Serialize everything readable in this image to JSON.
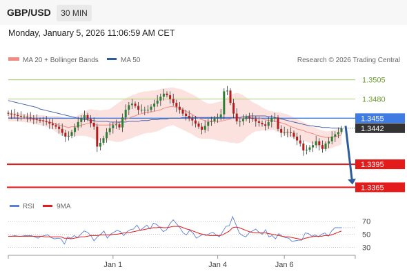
{
  "header": {
    "pair": "GBP/USD",
    "timeframe": "30 MIN"
  },
  "timestamp": "Monday, January 5, 2026 11:06:59 AM CET",
  "chart_data": [
    {
      "type": "candlestick",
      "legend": [
        {
          "label": "MA 20 + Bollinger Bands",
          "color": "#f28b82"
        },
        {
          "label": "MA 50",
          "color": "#2d5a9b"
        }
      ],
      "credit": "Research © 2026 Trading Central",
      "ylim": [
        1.336,
        1.352
      ],
      "levels": [
        {
          "label": "1.3505",
          "value": 1.3505,
          "color": "#8bc34a",
          "style": "thin"
        },
        {
          "label": "1.3480",
          "value": 1.348,
          "color": "#8bc34a",
          "style": "thin"
        },
        {
          "label": "1.3455",
          "value": 1.3455,
          "color": "#3f7be3",
          "style": "box"
        },
        {
          "label": "1.3442",
          "value": 1.3442,
          "color": "#333333",
          "style": "current"
        },
        {
          "label": "1.3395",
          "value": 1.3395,
          "color": "#e31b1b",
          "style": "thick"
        },
        {
          "label": "1.3365",
          "value": 1.3365,
          "color": "#e31b1b",
          "style": "thick"
        }
      ],
      "close": [
        1.3461,
        1.346,
        1.3459,
        1.3458,
        1.3457,
        1.3457,
        1.3456,
        1.3455,
        1.3454,
        1.3453,
        1.3452,
        1.3451,
        1.345,
        1.3448,
        1.3446,
        1.3444,
        1.3441,
        1.3436,
        1.3431,
        1.3432,
        1.3437,
        1.3443,
        1.345,
        1.3455,
        1.3459,
        1.3454,
        1.3449,
        1.3444,
        1.3418,
        1.3423,
        1.3429,
        1.3437,
        1.3442,
        1.3446,
        1.3447,
        1.3443,
        1.3456,
        1.3466,
        1.3472,
        1.3474,
        1.3471,
        1.3466,
        1.3466,
        1.3466,
        1.3466,
        1.347,
        1.3474,
        1.3478,
        1.3483,
        1.3487,
        1.3485,
        1.348,
        1.3475,
        1.347,
        1.3466,
        1.3461,
        1.3458,
        1.3455,
        1.3452,
        1.3448,
        1.3444,
        1.344,
        1.3445,
        1.345,
        1.3451,
        1.3455,
        1.3456,
        1.346,
        1.349,
        1.3491,
        1.3475,
        1.3461,
        1.3451,
        1.3451,
        1.3454,
        1.3457,
        1.3455,
        1.3454,
        1.3451,
        1.3449,
        1.3447,
        1.3445,
        1.345,
        1.3455,
        1.3456,
        1.3441,
        1.3436,
        1.3437,
        1.3437,
        1.3436,
        1.3431,
        1.3426,
        1.3422,
        1.3413,
        1.3414,
        1.3417,
        1.342,
        1.3425,
        1.342,
        1.3415,
        1.3422,
        1.3425,
        1.3431,
        1.3434,
        1.3437,
        1.3442
      ],
      "ma20": [
        1.3456,
        1.3456,
        1.3456,
        1.3456,
        1.3455,
        1.3455,
        1.3454,
        1.3454,
        1.3453,
        1.3453,
        1.3452,
        1.3452,
        1.3451,
        1.345,
        1.3449,
        1.3447,
        1.3446,
        1.3445,
        1.3444,
        1.3443,
        1.3444,
        1.3444,
        1.3445,
        1.3446,
        1.3447,
        1.3448,
        1.3448,
        1.3447,
        1.3446,
        1.3446,
        1.3446,
        1.3446,
        1.3446,
        1.3447,
        1.3448,
        1.345,
        1.3452,
        1.3454,
        1.3455,
        1.3457,
        1.3458,
        1.346,
        1.3461,
        1.3462,
        1.3463,
        1.3463,
        1.3464,
        1.3465,
        1.3466,
        1.3468,
        1.3469,
        1.347,
        1.347,
        1.3469,
        1.3468,
        1.3466,
        1.3464,
        1.3462,
        1.346,
        1.3457,
        1.3455,
        1.3453,
        1.3452,
        1.3451,
        1.3451,
        1.3451,
        1.3451,
        1.3451,
        1.3452,
        1.3453,
        1.3454,
        1.3455,
        1.3455,
        1.3455,
        1.3455,
        1.3456,
        1.3456,
        1.3456,
        1.3456,
        1.3455,
        1.3454,
        1.3453,
        1.3452,
        1.3452,
        1.3451,
        1.345,
        1.3449,
        1.3448,
        1.3446,
        1.3444,
        1.3443,
        1.3441,
        1.344,
        1.3439,
        1.3437,
        1.3436,
        1.3435,
        1.3433,
        1.3432,
        1.3431,
        1.343,
        1.343,
        1.343,
        1.3431,
        1.3432,
        1.3433
      ],
      "bb_upper": [
        1.3462,
        1.3462,
        1.3462,
        1.3462,
        1.3461,
        1.3461,
        1.346,
        1.346,
        1.3459,
        1.3459,
        1.3459,
        1.3459,
        1.3458,
        1.3458,
        1.3458,
        1.3458,
        1.3458,
        1.3457,
        1.3456,
        1.3455,
        1.3455,
        1.3457,
        1.3459,
        1.3461,
        1.3463,
        1.3466,
        1.3467,
        1.3466,
        1.3466,
        1.3465,
        1.3466,
        1.3466,
        1.3467,
        1.347,
        1.3473,
        1.3476,
        1.3479,
        1.3481,
        1.3483,
        1.3485,
        1.3486,
        1.3488,
        1.3489,
        1.349,
        1.349,
        1.3491,
        1.3491,
        1.3492,
        1.3493,
        1.3494,
        1.3494,
        1.3495,
        1.3495,
        1.3494,
        1.3493,
        1.3492,
        1.349,
        1.3488,
        1.3486,
        1.3484,
        1.3481,
        1.3478,
        1.3476,
        1.3474,
        1.3474,
        1.3475,
        1.3476,
        1.3477,
        1.3479,
        1.3482,
        1.3485,
        1.3487,
        1.3488,
        1.3487,
        1.3485,
        1.3482,
        1.3479,
        1.3476,
        1.3474,
        1.3472,
        1.3469,
        1.3467,
        1.3465,
        1.3464,
        1.3463,
        1.3463,
        1.3462,
        1.3461,
        1.346,
        1.3458,
        1.3456,
        1.3454,
        1.3452,
        1.345,
        1.3448,
        1.3446,
        1.3444,
        1.3442,
        1.344,
        1.3439,
        1.3438,
        1.3438,
        1.3439,
        1.344,
        1.3441,
        1.3442
      ],
      "bb_lower": [
        1.3451,
        1.3451,
        1.3451,
        1.3451,
        1.345,
        1.345,
        1.3449,
        1.3449,
        1.3448,
        1.3447,
        1.3446,
        1.3445,
        1.3444,
        1.3442,
        1.344,
        1.3437,
        1.3434,
        1.3433,
        1.3432,
        1.3431,
        1.3432,
        1.3432,
        1.3432,
        1.3432,
        1.3432,
        1.3431,
        1.343,
        1.3428,
        1.3426,
        1.3426,
        1.3426,
        1.3426,
        1.3426,
        1.3425,
        1.3424,
        1.3424,
        1.3425,
        1.3427,
        1.3428,
        1.3429,
        1.3431,
        1.3432,
        1.3434,
        1.3435,
        1.3436,
        1.3436,
        1.3437,
        1.3438,
        1.344,
        1.3442,
        1.3444,
        1.3445,
        1.3446,
        1.3444,
        1.3442,
        1.344,
        1.3438,
        1.3436,
        1.3434,
        1.3431,
        1.3429,
        1.3428,
        1.3428,
        1.3428,
        1.3428,
        1.3427,
        1.3426,
        1.3425,
        1.3425,
        1.3424,
        1.3423,
        1.3423,
        1.3422,
        1.3423,
        1.3425,
        1.343,
        1.3433,
        1.3436,
        1.3438,
        1.3438,
        1.3439,
        1.3439,
        1.3439,
        1.344,
        1.3439,
        1.3437,
        1.3436,
        1.3434,
        1.3432,
        1.343,
        1.3429,
        1.3427,
        1.3426,
        1.3426,
        1.3424,
        1.3423,
        1.3421,
        1.3419,
        1.3418,
        1.3416,
        1.3414,
        1.3415,
        1.3416,
        1.3418,
        1.3419,
        1.3421
      ],
      "ma50": [
        1.3478,
        1.3477,
        1.3476,
        1.3475,
        1.3474,
        1.3473,
        1.3472,
        1.3471,
        1.347,
        1.3469,
        1.3467,
        1.3466,
        1.3465,
        1.3464,
        1.3463,
        1.3462,
        1.3461,
        1.346,
        1.3459,
        1.3458,
        1.3457,
        1.3456,
        1.3455,
        1.3454,
        1.3453,
        1.3453,
        1.3452,
        1.3452,
        1.3451,
        1.3451,
        1.3451,
        1.3451,
        1.345,
        1.345,
        1.345,
        1.345,
        1.345,
        1.345,
        1.3451,
        1.3451,
        1.3451,
        1.3451,
        1.3452,
        1.3452,
        1.3452,
        1.3453,
        1.3453,
        1.3453,
        1.3454,
        1.3454,
        1.3454,
        1.3455,
        1.3455,
        1.3455,
        1.3455,
        1.3456,
        1.3456,
        1.3456,
        1.3456,
        1.3456,
        1.3456,
        1.3456,
        1.3456,
        1.3456,
        1.3456,
        1.3456,
        1.3456,
        1.3456,
        1.3456,
        1.3456,
        1.3456,
        1.3456,
        1.3456,
        1.3456,
        1.3457,
        1.3457,
        1.3458,
        1.3458,
        1.3458,
        1.3458,
        1.3458,
        1.3458,
        1.3457,
        1.3457,
        1.3456,
        1.3455,
        1.3454,
        1.3453,
        1.3452,
        1.3451,
        1.345,
        1.3449,
        1.3448,
        1.3447,
        1.3446,
        1.3445,
        1.3445,
        1.3444,
        1.3444,
        1.3443,
        1.3443,
        1.3443,
        1.3442,
        1.3442,
        1.3442,
        1.3442
      ],
      "forecast_arrow": {
        "from": 1.3445,
        "to": 1.3365
      },
      "x_ticks": [
        {
          "label": "Jan 1",
          "index": 33
        },
        {
          "label": "Jan 4",
          "index": 66
        },
        {
          "label": "Jan 6",
          "index": 87
        }
      ]
    },
    {
      "type": "line",
      "legend": [
        {
          "label": "RSI",
          "color": "#5b7fd6"
        },
        {
          "label": "9MA",
          "color": "#e31b1b"
        }
      ],
      "ylim": [
        20,
        80
      ],
      "y_ticks": [
        "70",
        "50",
        "30"
      ],
      "rsi": [
        47,
        47,
        48,
        47,
        47,
        48,
        48,
        48,
        46,
        44,
        47,
        48,
        49,
        45,
        43,
        44,
        43,
        35,
        46,
        44,
        48,
        45,
        50,
        55,
        53,
        48,
        40,
        46,
        50,
        55,
        44,
        50,
        53,
        56,
        54,
        48,
        54,
        57,
        58,
        64,
        56,
        60,
        64,
        58,
        67,
        65,
        60,
        54,
        57,
        66,
        72,
        66,
        60,
        52,
        49,
        56,
        52,
        44,
        47,
        50,
        48,
        51,
        53,
        49,
        46,
        54,
        62,
        63,
        77,
        65,
        52,
        48,
        46,
        52,
        55,
        58,
        53,
        50,
        57,
        46,
        48,
        43,
        51,
        47,
        45,
        44,
        39,
        40,
        41,
        41,
        52,
        51,
        47,
        49,
        46,
        50,
        52,
        47,
        55,
        60,
        60,
        60
      ],
      "ma9": [
        47,
        47,
        47,
        47,
        47,
        47,
        47,
        47,
        47,
        47,
        47,
        46,
        46,
        46,
        46,
        46,
        46,
        44,
        44,
        43,
        44,
        45,
        46,
        46,
        47,
        48,
        48,
        48,
        49,
        49,
        49,
        49,
        50,
        50,
        51,
        52,
        52,
        53,
        54,
        55,
        56,
        57,
        58,
        59,
        60,
        60,
        61,
        60,
        60,
        61,
        62,
        62,
        62,
        60,
        58,
        57,
        55,
        53,
        51,
        50,
        49,
        48,
        48,
        48,
        48,
        49,
        52,
        55,
        60,
        61,
        60,
        58,
        56,
        54,
        53,
        52,
        52,
        52,
        52,
        51,
        50,
        49,
        48,
        47,
        46,
        46,
        45,
        44,
        43,
        42,
        44,
        45,
        46,
        47,
        47,
        47,
        48,
        48,
        49,
        51,
        53,
        55
      ]
    }
  ]
}
